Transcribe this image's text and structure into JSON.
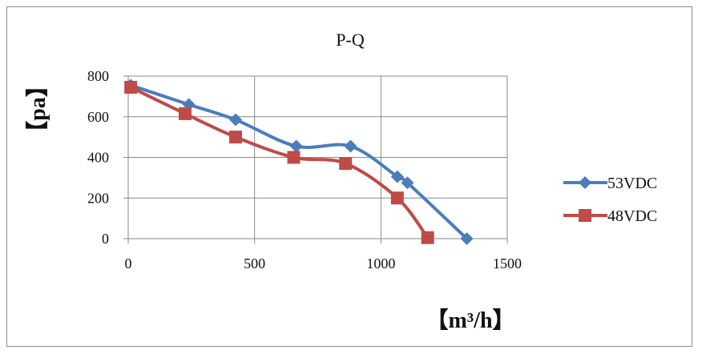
{
  "chart_data": {
    "type": "line",
    "title": "P-Q",
    "xlabel": "【m³/h】",
    "ylabel": "【pa】",
    "xlim": [
      0,
      1500
    ],
    "ylim": [
      0,
      800
    ],
    "xticks": [
      0,
      500,
      1000,
      1500
    ],
    "yticks": [
      0,
      200,
      400,
      600,
      800
    ],
    "grid": true,
    "legend": "right",
    "series": [
      {
        "name": "53VDC",
        "color": "#4a7ebb",
        "marker": "diamond",
        "x": [
          10,
          240,
          425,
          665,
          880,
          1065,
          1105,
          1340
        ],
        "y": [
          755,
          660,
          585,
          455,
          455,
          305,
          275,
          0
        ]
      },
      {
        "name": "48VDC",
        "color": "#be4b48",
        "marker": "square",
        "x": [
          10,
          225,
          425,
          655,
          860,
          1065,
          1185
        ],
        "y": [
          745,
          615,
          500,
          400,
          370,
          200,
          5
        ]
      }
    ]
  }
}
